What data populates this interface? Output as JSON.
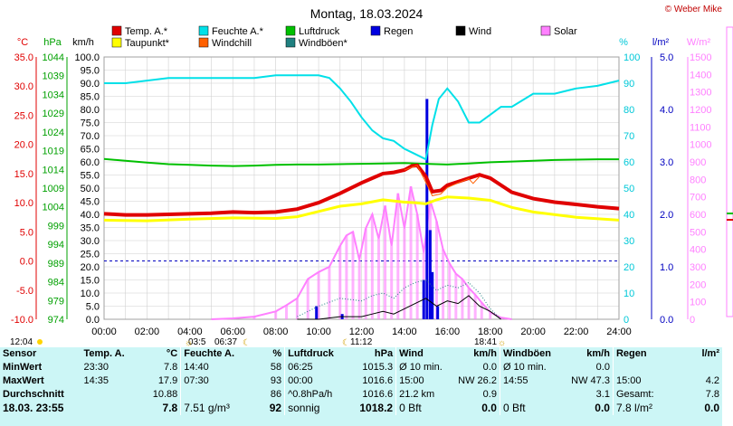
{
  "chart_data": {
    "type": "line",
    "title": "Montag, 18.03.2024",
    "copyright": "© Weber Mike",
    "x_ticks": [
      "00:00",
      "02:00",
      "04:00",
      "06:00",
      "08:00",
      "10:00",
      "12:00",
      "14:00",
      "16:00",
      "18:00",
      "20:00",
      "22:00",
      "24:00"
    ],
    "xlim": [
      0,
      24
    ],
    "axes": {
      "temp": {
        "unit": "°C",
        "ticks": [
          "35.0",
          "30.0",
          "25.0",
          "20.0",
          "15.0",
          "10.0",
          "5.0",
          "0.0",
          "-5.0",
          "-10.0"
        ],
        "ylim": [
          -10,
          35
        ],
        "color": "#e00000"
      },
      "pressure": {
        "unit": "hPa",
        "ticks": [
          "1044",
          "1039",
          "1034",
          "1029",
          "1024",
          "1019",
          "1014",
          "1009",
          "1004",
          "999",
          "994",
          "989",
          "984",
          "979",
          "974"
        ],
        "ylim": [
          974,
          1044
        ],
        "color": "#00a000"
      },
      "wind": {
        "unit": "km/h",
        "ticks": [
          "100.0",
          "95.0",
          "90.0",
          "85.0",
          "80.0",
          "75.0",
          "70.0",
          "65.0",
          "60.0",
          "55.0",
          "50.0",
          "45.0",
          "40.0",
          "35.0",
          "30.0",
          "25.0",
          "20.0",
          "15.0",
          "10.0",
          "5.0",
          "0.0"
        ],
        "ylim": [
          0,
          100
        ],
        "color": "#000000"
      },
      "humidity": {
        "unit": "%",
        "ticks": [
          "100",
          "90",
          "80",
          "70",
          "60",
          "50",
          "40",
          "30",
          "20",
          "10",
          "0"
        ],
        "ylim": [
          0,
          100
        ],
        "color": "#00c8d8"
      },
      "rain": {
        "unit": "l/m²",
        "ticks": [
          "5.0",
          "4.0",
          "3.0",
          "2.0",
          "1.0",
          "0.0"
        ],
        "ylim": [
          0,
          5
        ],
        "color": "#0000c0"
      },
      "solar": {
        "unit": "W/m²",
        "ticks": [
          "1500",
          "1400",
          "1300",
          "1200",
          "1100",
          "1000",
          "900",
          "800",
          "700",
          "600",
          "500",
          "400",
          "300",
          "200",
          "100",
          "0"
        ],
        "ylim": [
          0,
          1500
        ],
        "color": "#ff80ff"
      }
    },
    "legend": [
      {
        "name": "Temp. A.*",
        "color": "#e00000"
      },
      {
        "name": "Feuchte A.*",
        "color": "#00e0e8"
      },
      {
        "name": "Luftdruck",
        "color": "#00c000"
      },
      {
        "name": "Regen",
        "color": "#0000e0"
      },
      {
        "name": "Wind",
        "color": "#000000"
      },
      {
        "name": "Solar",
        "color": "#ff80ff"
      },
      {
        "name": "Taupunkt*",
        "color": "#ffff00"
      },
      {
        "name": "Windchill",
        "color": "#ff6000"
      },
      {
        "name": "Windböen*",
        "color": "#208080"
      }
    ],
    "series": [
      {
        "name": "Temp. A.*",
        "axis": "temp",
        "x": [
          0,
          1,
          2,
          3,
          4,
          5,
          6,
          7,
          8,
          9,
          10,
          11,
          12,
          12.5,
          13,
          13.5,
          14,
          14.35,
          14.6,
          15,
          15.3,
          15.7,
          16,
          16.5,
          17,
          17.5,
          18,
          19,
          20,
          21,
          22,
          23,
          24
        ],
        "y": [
          8.1,
          7.9,
          7.9,
          8.0,
          8.1,
          8.2,
          8.4,
          8.3,
          8.4,
          8.9,
          10.0,
          11.6,
          13.4,
          14.2,
          15.0,
          15.2,
          15.6,
          16.3,
          16.4,
          14.5,
          11.9,
          12.1,
          13.0,
          13.6,
          14.2,
          14.8,
          14.2,
          11.8,
          10.7,
          10.1,
          9.7,
          9.3,
          9.0
        ]
      },
      {
        "name": "Taupunkt*",
        "axis": "temp",
        "x": [
          0,
          2,
          4,
          6,
          8,
          9,
          10,
          11,
          12,
          13,
          14,
          14.5,
          15,
          15.5,
          16,
          17,
          18,
          19,
          20,
          22,
          24
        ],
        "y": [
          7.0,
          6.9,
          7.2,
          7.4,
          7.3,
          7.6,
          8.5,
          9.4,
          9.8,
          10.5,
          10.1,
          10.0,
          9.8,
          10.5,
          11.0,
          10.8,
          10.4,
          9.2,
          8.4,
          7.5,
          7.0
        ]
      },
      {
        "name": "Windchill",
        "axis": "temp",
        "x": [
          14.0,
          14.6,
          15.0,
          15.3,
          15.7,
          16.0,
          16.5,
          17.0,
          17.2,
          17.5
        ],
        "y": [
          15.6,
          16.4,
          13.5,
          11.2,
          11.5,
          12.6,
          13.4,
          14.1,
          13.3,
          14.5
        ]
      },
      {
        "name": "Luftdruck",
        "axis": "pressure",
        "x": [
          0,
          1,
          2,
          3,
          4,
          5,
          6,
          7,
          8,
          9,
          10,
          11,
          12,
          13,
          14,
          15,
          16,
          17,
          18,
          19,
          20,
          21,
          22,
          23,
          24
        ],
        "y": [
          1016.8,
          1016.3,
          1015.8,
          1015.4,
          1015.2,
          1015.0,
          1014.9,
          1015.0,
          1015.2,
          1015.3,
          1015.3,
          1015.4,
          1015.5,
          1015.6,
          1015.7,
          1015.5,
          1015.3,
          1015.6,
          1015.9,
          1016.1,
          1016.3,
          1016.5,
          1016.6,
          1016.7,
          1016.7
        ]
      },
      {
        "name": "Feuchte A.*",
        "axis": "humidity",
        "x": [
          0,
          1,
          2,
          3,
          4,
          5,
          6,
          7,
          8,
          9,
          10,
          10.5,
          11,
          11.5,
          12,
          12.5,
          13,
          13.5,
          14,
          14.5,
          15,
          15.3,
          15.6,
          16,
          16.5,
          17,
          17.5,
          18,
          18.5,
          19,
          20,
          21,
          22,
          23,
          24
        ],
        "y": [
          90,
          90,
          91,
          92,
          92,
          92,
          92,
          92,
          93,
          93,
          93,
          92,
          88,
          83,
          77,
          72,
          69,
          68,
          65,
          63,
          61,
          74,
          84,
          88,
          83,
          75,
          75,
          78,
          81,
          81,
          86,
          86,
          88,
          89,
          91
        ]
      },
      {
        "name": "Solar",
        "axis": "solar",
        "x": [
          5,
          6,
          7,
          8,
          8.5,
          9,
          9.5,
          10,
          10.5,
          11,
          11.3,
          11.6,
          11.9,
          12.2,
          12.5,
          12.8,
          13.1,
          13.4,
          13.7,
          14.0,
          14.3,
          14.6,
          14.9,
          15.2,
          15.5,
          15.8,
          16.1,
          16.4,
          16.7,
          17.0,
          17.3,
          17.6,
          18.0,
          18.5,
          19
        ],
        "y": [
          0,
          5,
          15,
          45,
          80,
          120,
          230,
          270,
          300,
          420,
          480,
          500,
          340,
          520,
          600,
          460,
          650,
          420,
          720,
          520,
          760,
          600,
          380,
          680,
          560,
          400,
          320,
          260,
          230,
          180,
          140,
          95,
          40,
          10,
          0
        ]
      },
      {
        "name": "Wind",
        "axis": "wind",
        "x": [
          9,
          10,
          11,
          12,
          12.5,
          13,
          13.5,
          14,
          14.5,
          15,
          15.5,
          16,
          16.5,
          17,
          17.5,
          18,
          18.5
        ],
        "y": [
          0,
          0,
          1,
          1,
          2,
          3,
          2,
          4,
          6,
          8,
          5,
          7,
          6,
          9,
          5,
          3,
          0
        ]
      },
      {
        "name": "Windböen*",
        "axis": "wind",
        "x": [
          9,
          10,
          11,
          12,
          12.5,
          13,
          13.5,
          14,
          14.5,
          15,
          15.5,
          16,
          16.5,
          17,
          17.5,
          18,
          18.5
        ],
        "y": [
          1,
          5,
          8,
          7,
          9,
          10,
          8,
          12,
          14,
          15,
          11,
          13,
          12,
          14,
          10,
          4,
          0
        ]
      },
      {
        "name": "Regen",
        "axis": "rain",
        "x": [
          9.9,
          11.1,
          14.9,
          15.05,
          15.2,
          15.3,
          15.55
        ],
        "y": [
          0.25,
          0.1,
          0.75,
          4.2,
          1.7,
          0.9,
          0.25
        ]
      }
    ],
    "sun_markers": [
      "12:04",
      "03:5",
      "06:37",
      "11:12",
      "18:41"
    ],
    "sun_symbols": [
      "☼",
      "☾",
      "☾",
      "☼"
    ]
  },
  "table": {
    "headers": [
      "Sensor",
      "Temp. A.",
      "°C",
      "Feuchte A.",
      "%",
      "Luftdruck",
      "hPa",
      "Wind",
      "km/h",
      "Windböen",
      "km/h",
      "Regen",
      "l/m²"
    ],
    "rows": [
      [
        "MinWert",
        "23:30",
        "7.8",
        "14:40",
        "58",
        "06:25",
        "1015.3",
        "Ø 10 min.",
        "0.0",
        "Ø 10 min.",
        "0.0",
        "",
        ""
      ],
      [
        "MaxWert",
        "14:35",
        "17.9",
        "07:30",
        "93",
        "00:00",
        "1016.6",
        "15:00",
        "NW 26.2",
        "14:55",
        "NW 47.3",
        "15:00",
        "4.2"
      ],
      [
        "Durchschnitt",
        "",
        "10.88",
        "",
        "86",
        "^0.8hPa/h",
        "1016.6",
        "21.2 km",
        "0.9",
        "",
        "3.1",
        "Gesamt:",
        "7.8"
      ],
      [
        "18.03. 23:55",
        "",
        "7.8",
        "7.51 g/m³",
        "92",
        "sonnig",
        "1018.2",
        "0 Bft",
        "0.0",
        "0 Bft",
        "0.0",
        "7.8 l/m²",
        "0.0"
      ]
    ]
  }
}
